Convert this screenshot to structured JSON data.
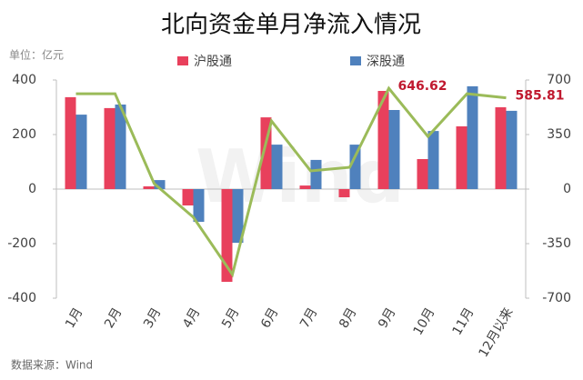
{
  "chart_data": {
    "type": "bar-line",
    "title": "北向资金单月净流入情况",
    "unit_label": "单位：亿元",
    "source": "数据来源：Wind",
    "watermark": "Wind",
    "categories": [
      "1月",
      "2月",
      "3月",
      "4月",
      "5月",
      "6月",
      "7月",
      "8月",
      "9月",
      "10月",
      "11月",
      "12月以来"
    ],
    "series": [
      {
        "name": "沪股通",
        "color": "#e8405c",
        "values": [
          337,
          297,
          10,
          -60,
          -340,
          263,
          13,
          -30,
          360,
          110,
          230,
          300
        ]
      },
      {
        "name": "深股通",
        "color": "#4f81bd",
        "values": [
          273,
          310,
          33,
          -120,
          -197,
          163,
          107,
          163,
          290,
          213,
          377,
          287
        ]
      },
      {
        "color": "#9bbb59",
        "axis": "y2",
        "values": [
          612,
          612,
          35,
          -180,
          -548,
          437,
          117,
          140,
          646.62,
          338,
          612,
          585.81
        ],
        "value_labels": [
          null,
          null,
          null,
          null,
          null,
          null,
          null,
          null,
          "646.62",
          null,
          null,
          "585.81"
        ],
        "label_color": "#c0192f"
      }
    ],
    "ylim": [
      -400,
      400
    ],
    "yticks": [
      -400,
      -200,
      0,
      200,
      400
    ],
    "y2lim": [
      -700,
      700
    ],
    "y2ticks": [
      -700,
      -350,
      0,
      350,
      700
    ]
  }
}
